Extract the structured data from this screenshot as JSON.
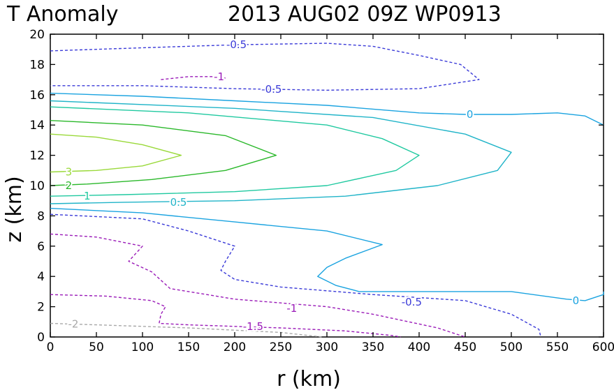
{
  "chart_data": {
    "type": "contour",
    "title_left": "T Anomaly",
    "title_right": "2013 AUG02 09Z   WP0913",
    "xlabel": "r (km)",
    "ylabel": "z (km)",
    "xlim": [
      0,
      600
    ],
    "ylim": [
      0,
      20
    ],
    "x_ticks": [
      0,
      50,
      100,
      150,
      200,
      250,
      300,
      350,
      400,
      450,
      500,
      550,
      600
    ],
    "y_ticks": [
      0,
      2,
      4,
      6,
      8,
      10,
      12,
      14,
      16,
      18,
      20
    ],
    "contours": [
      {
        "level": 3,
        "color": "#9ad93a",
        "dashed": false,
        "points": [
          [
            0,
            13.4
          ],
          [
            50,
            13.2
          ],
          [
            100,
            12.7
          ],
          [
            142,
            12.0
          ],
          [
            100,
            11.3
          ],
          [
            50,
            11.0
          ],
          [
            0,
            10.9
          ]
        ]
      },
      {
        "level": 2,
        "color": "#2ab82a",
        "dashed": false,
        "points": [
          [
            0,
            14.3
          ],
          [
            100,
            14.0
          ],
          [
            190,
            13.3
          ],
          [
            245,
            12.0
          ],
          [
            190,
            11.0
          ],
          [
            110,
            10.4
          ],
          [
            40,
            10.1
          ],
          [
            0,
            10.0
          ]
        ]
      },
      {
        "level": 1,
        "color": "#20c9a0",
        "dashed": false,
        "points": [
          [
            0,
            15.2
          ],
          [
            150,
            14.8
          ],
          [
            300,
            14.0
          ],
          [
            360,
            13.1
          ],
          [
            400,
            12.0
          ],
          [
            375,
            11.0
          ],
          [
            300,
            10.0
          ],
          [
            200,
            9.6
          ],
          [
            80,
            9.4
          ],
          [
            0,
            9.3
          ]
        ]
      },
      {
        "level": 0.5,
        "color": "#20b4c8",
        "dashed": false,
        "points": [
          [
            0,
            15.6
          ],
          [
            200,
            15.1
          ],
          [
            350,
            14.5
          ],
          [
            450,
            13.4
          ],
          [
            500,
            12.2
          ],
          [
            485,
            11.0
          ],
          [
            420,
            10.0
          ],
          [
            320,
            9.3
          ],
          [
            200,
            9.0
          ],
          [
            80,
            8.9
          ],
          [
            0,
            8.8
          ]
        ]
      },
      {
        "level": 0,
        "color": "#1aa3e0",
        "dashed": false,
        "points": [
          [
            0,
            16.1
          ],
          [
            100,
            15.9
          ],
          [
            200,
            15.6
          ],
          [
            300,
            15.3
          ],
          [
            400,
            14.8
          ],
          [
            450,
            14.7
          ],
          [
            500,
            14.7
          ],
          [
            550,
            14.8
          ],
          [
            580,
            14.6
          ],
          [
            600,
            14.0
          ]
        ]
      },
      {
        "level": 0,
        "color": "#1aa3e0",
        "dashed": false,
        "points": [
          [
            0,
            8.5
          ],
          [
            100,
            8.2
          ],
          [
            200,
            7.6
          ],
          [
            300,
            7.0
          ],
          [
            360,
            6.1
          ],
          [
            320,
            5.2
          ],
          [
            300,
            4.6
          ],
          [
            290,
            4.0
          ],
          [
            310,
            3.4
          ],
          [
            335,
            3.0
          ],
          [
            400,
            3.0
          ],
          [
            500,
            3.0
          ],
          [
            560,
            2.5
          ],
          [
            580,
            2.4
          ],
          [
            600,
            2.8
          ],
          [
            600,
            3.0
          ]
        ]
      },
      {
        "level": -0.5,
        "color": "#3a3ad8",
        "dashed": true,
        "points": [
          [
            0,
            18.9
          ],
          [
            100,
            19.1
          ],
          [
            200,
            19.3
          ],
          [
            300,
            19.4
          ],
          [
            350,
            19.2
          ],
          [
            400,
            18.6
          ],
          [
            445,
            18.0
          ],
          [
            465,
            17.0
          ],
          [
            400,
            16.4
          ],
          [
            300,
            16.3
          ],
          [
            200,
            16.4
          ],
          [
            100,
            16.6
          ],
          [
            0,
            16.6
          ]
        ]
      },
      {
        "level": -0.5,
        "color": "#3a3ad8",
        "dashed": true,
        "points": [
          [
            0,
            8.1
          ],
          [
            100,
            7.8
          ],
          [
            150,
            7.0
          ],
          [
            200,
            6.0
          ],
          [
            190,
            5.0
          ],
          [
            185,
            4.4
          ],
          [
            200,
            3.8
          ],
          [
            250,
            3.3
          ],
          [
            350,
            2.8
          ],
          [
            450,
            2.4
          ],
          [
            500,
            1.5
          ],
          [
            530,
            0.5
          ],
          [
            532,
            0
          ]
        ]
      },
      {
        "level": -1,
        "color": "#9a1ab8",
        "dashed": true,
        "points": [
          [
            120,
            17.0
          ],
          [
            150,
            17.2
          ],
          [
            175,
            17.2
          ],
          [
            190,
            17.1
          ]
        ]
      },
      {
        "level": -1,
        "color": "#9a1ab8",
        "dashed": true,
        "points": [
          [
            0,
            6.8
          ],
          [
            50,
            6.6
          ],
          [
            100,
            6.0
          ],
          [
            85,
            5.0
          ],
          [
            110,
            4.3
          ],
          [
            130,
            3.2
          ],
          [
            200,
            2.5
          ],
          [
            300,
            2.0
          ],
          [
            350,
            1.5
          ],
          [
            420,
            0.6
          ],
          [
            450,
            0
          ]
        ]
      },
      {
        "level": -1.5,
        "color": "#9a1ab8",
        "dashed": true,
        "points": [
          [
            0,
            2.8
          ],
          [
            60,
            2.7
          ],
          [
            110,
            2.4
          ],
          [
            125,
            2.0
          ],
          [
            120,
            1.5
          ],
          [
            118,
            0.9
          ],
          [
            150,
            0.8
          ],
          [
            250,
            0.6
          ],
          [
            320,
            0.4
          ],
          [
            370,
            0.1
          ],
          [
            380,
            0
          ]
        ]
      },
      {
        "level": -2,
        "color": "#a8a8a8",
        "dashed": true,
        "points": [
          [
            0,
            0.9
          ],
          [
            50,
            0.8
          ],
          [
            150,
            0.6
          ],
          [
            250,
            0.3
          ],
          [
            295,
            0
          ]
        ]
      }
    ],
    "contour_labels": [
      {
        "text": "-0.5",
        "x": 202,
        "y": 19.3,
        "color": "#3a3ad8"
      },
      {
        "text": "-1",
        "x": 183,
        "y": 17.2,
        "color": "#9a1ab8"
      },
      {
        "text": "-0.5",
        "x": 240,
        "y": 16.35,
        "color": "#3a3ad8"
      },
      {
        "text": "0",
        "x": 455,
        "y": 14.7,
        "color": "#1aa3e0"
      },
      {
        "text": "3",
        "x": 20,
        "y": 10.9,
        "color": "#9ad93a"
      },
      {
        "text": "2",
        "x": 20,
        "y": 10.0,
        "color": "#2ab82a"
      },
      {
        "text": "1",
        "x": 40,
        "y": 9.3,
        "color": "#20c9a0"
      },
      {
        "text": "0.5",
        "x": 139,
        "y": 8.9,
        "color": "#20b4c8"
      },
      {
        "text": "-0.5",
        "x": 392,
        "y": 2.3,
        "color": "#3a3ad8"
      },
      {
        "text": "-1",
        "x": 262,
        "y": 1.9,
        "color": "#9a1ab8"
      },
      {
        "text": "-1.5",
        "x": 220,
        "y": 0.7,
        "color": "#9a1ab8"
      },
      {
        "text": "-2",
        "x": 25,
        "y": 0.85,
        "color": "#a8a8a8"
      },
      {
        "text": "0",
        "x": 570,
        "y": 2.4,
        "color": "#1aa3e0"
      }
    ]
  }
}
